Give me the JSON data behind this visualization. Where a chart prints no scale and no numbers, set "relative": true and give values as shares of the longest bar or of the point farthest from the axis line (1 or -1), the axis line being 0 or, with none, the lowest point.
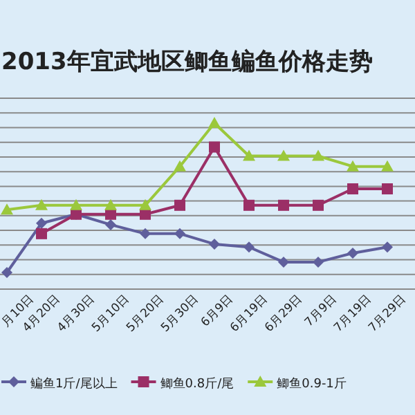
{
  "chart_data": {
    "type": "line",
    "title": "2013年宜武地区鲫鱼鳊鱼价格走势",
    "relative": true,
    "grid": "y",
    "legend": "bottom",
    "categories": [
      "月10日",
      "4月20日",
      "4月30日",
      "5月10日",
      "5月20日",
      "5月30日",
      "6月9日",
      "6月19日",
      "6月29日",
      "7月9日",
      "7月19日",
      "7月29日"
    ],
    "series": [
      {
        "name": "鳊鱼1斤/尾以上",
        "color": "#5f5f9c",
        "marker": "diamond",
        "values": [
          0,
          0.33,
          0.39,
          0.32,
          0.26,
          0.26,
          0.19,
          0.17,
          0.07,
          0.07,
          0.13,
          0.17
        ]
      },
      {
        "name": "鲫鱼0.8斤/尾",
        "color": "#9b2f66",
        "marker": "square",
        "values": [
          null,
          0.26,
          0.39,
          0.39,
          0.39,
          0.45,
          0.84,
          0.45,
          0.45,
          0.45,
          0.56,
          0.56
        ]
      },
      {
        "name": "鲫鱼0.9-1斤",
        "color": "#9bc83c",
        "marker": "triangle",
        "values": [
          0.42,
          0.45,
          0.45,
          0.45,
          0.45,
          0.71,
          1,
          0.78,
          0.78,
          0.78,
          0.71,
          0.71
        ]
      }
    ]
  }
}
